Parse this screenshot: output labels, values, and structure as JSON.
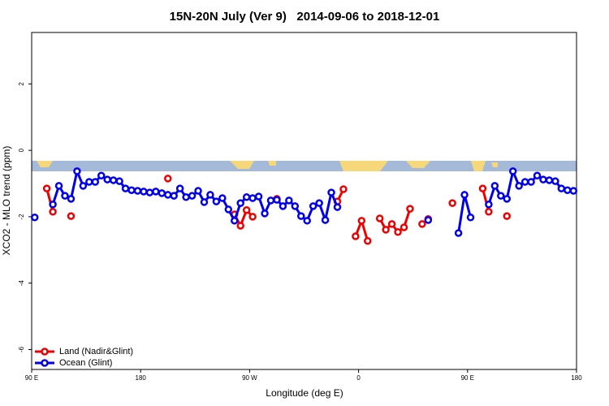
{
  "chart_data": {
    "type": "line",
    "title": "15N-20N July (Ver 9)   2014-09-06 to 2018-12-01",
    "x_label": "Longitude (deg E)",
    "y_label": "XCO2 - MLO trend (ppm)",
    "xlim": [
      90,
      540
    ],
    "ylim": [
      -6.6,
      3.55
    ],
    "xticks": [
      {
        "value": 90,
        "label": "90 E"
      },
      {
        "value": 180,
        "label": "180"
      },
      {
        "value": 270,
        "label": "90 W"
      },
      {
        "value": 360,
        "label": "0"
      },
      {
        "value": 450,
        "label": "90 E"
      },
      {
        "value": 540,
        "label": "180"
      }
    ],
    "yticks": [
      -6,
      -4,
      -2,
      0,
      2
    ],
    "legend": "bottom-left",
    "x": [
      92.5,
      97.5,
      102.5,
      107.5,
      112.5,
      117.5,
      122.5,
      127.5,
      132.5,
      137.5,
      142.5,
      147.5,
      152.5,
      157.5,
      162.5,
      167.5,
      172.5,
      177.5,
      182.5,
      187.5,
      192.5,
      197.5,
      202.5,
      207.5,
      212.5,
      217.5,
      222.5,
      227.5,
      232.5,
      237.5,
      242.5,
      247.5,
      252.5,
      257.5,
      262.5,
      267.5,
      272.5,
      277.5,
      282.5,
      287.5,
      292.5,
      297.5,
      302.5,
      307.5,
      312.5,
      317.5,
      322.5,
      327.5,
      332.5,
      337.5,
      342.5,
      347.5,
      352.5,
      357.5,
      362.5,
      367.5,
      372.5,
      377.5,
      382.5,
      387.5,
      392.5,
      397.5,
      402.5,
      407.5,
      412.5,
      417.5,
      422.5,
      427.5,
      432.5,
      437.5,
      442.5,
      447.5,
      452.5,
      457.5,
      462.5,
      467.5,
      472.5,
      477.5,
      482.5,
      487.5,
      492.5,
      497.5,
      502.5,
      507.5,
      512.5,
      517.5,
      522.5,
      527.5,
      532.5,
      537.5
    ],
    "series": [
      {
        "name": "Land (Nadir&Glint)",
        "color": "#ee0000",
        "values": [
          null,
          null,
          -1.15,
          -1.85,
          null,
          null,
          -1.98,
          null,
          null,
          null,
          null,
          null,
          null,
          null,
          null,
          null,
          null,
          null,
          null,
          null,
          null,
          null,
          -0.85,
          null,
          null,
          null,
          null,
          null,
          null,
          null,
          null,
          null,
          null,
          -1.93,
          -2.27,
          -1.8,
          -2.0,
          null,
          null,
          null,
          -1.46,
          null,
          null,
          null,
          null,
          null,
          null,
          null,
          null,
          null,
          -1.54,
          -1.17,
          null,
          -2.59,
          -2.12,
          -2.73,
          null,
          -2.05,
          -2.39,
          -2.22,
          -2.46,
          -2.32,
          -1.76,
          null,
          -2.22,
          -2.07,
          null,
          null,
          null,
          -1.59,
          null,
          null,
          null,
          null,
          -1.15,
          -1.85,
          null,
          null,
          -1.98,
          null,
          null,
          null,
          null,
          null,
          null,
          null,
          null,
          null,
          null,
          null
        ]
      },
      {
        "name": "Ocean (Glint)",
        "color": "#0000ee",
        "values": [
          -2.02,
          null,
          null,
          -1.63,
          -1.07,
          -1.37,
          -1.46,
          -0.63,
          -1.07,
          -0.95,
          -0.95,
          -0.76,
          -0.88,
          -0.9,
          -0.93,
          -1.15,
          -1.2,
          -1.22,
          -1.24,
          -1.27,
          -1.24,
          -1.29,
          -1.34,
          -1.37,
          -1.15,
          -1.41,
          -1.37,
          -1.22,
          -1.56,
          -1.34,
          -1.54,
          -1.44,
          -1.78,
          -2.12,
          -1.59,
          -1.41,
          -1.44,
          -1.39,
          -1.9,
          -1.51,
          -1.49,
          -1.68,
          -1.51,
          -1.68,
          -1.98,
          -2.12,
          -1.68,
          -1.59,
          -2.1,
          -1.27,
          -1.71,
          null,
          null,
          null,
          null,
          null,
          null,
          null,
          null,
          null,
          null,
          null,
          null,
          null,
          null,
          -2.1,
          null,
          null,
          null,
          null,
          -2.49,
          -1.34,
          -2.02,
          null,
          null,
          -1.63,
          -1.07,
          -1.37,
          -1.46,
          -0.63,
          -1.07,
          -0.95,
          -0.95,
          -0.76,
          -0.88,
          -0.9,
          -0.93,
          -1.15,
          -1.2,
          -1.22
        ]
      }
    ]
  }
}
